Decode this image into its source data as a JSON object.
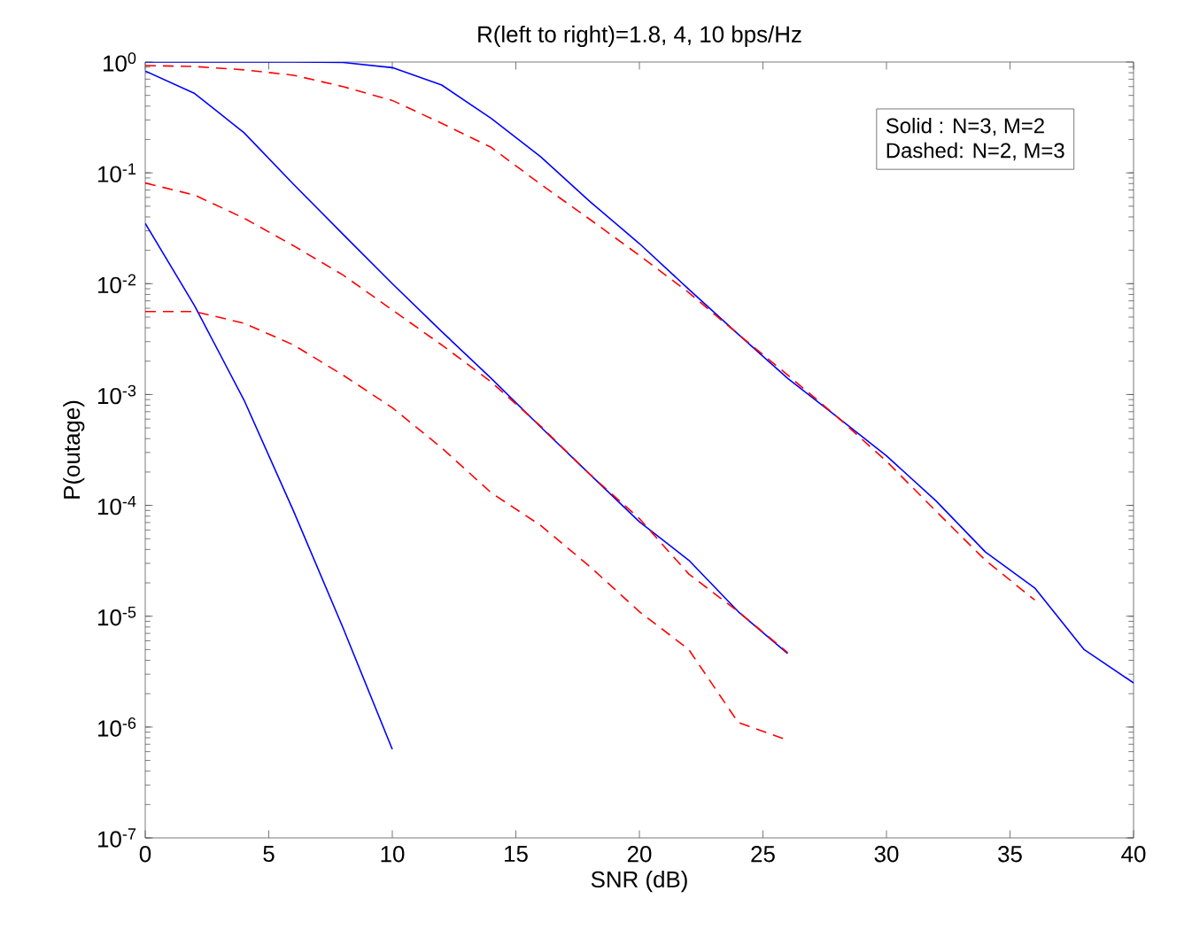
{
  "chart_data": {
    "type": "line",
    "title": "R(left to right)=1.8, 4, 10 bps/Hz",
    "xlabel": "SNR (dB)",
    "ylabel": "P(outage)",
    "log": "y",
    "xlim": [
      0,
      40
    ],
    "xticks": [
      0,
      5,
      10,
      15,
      20,
      25,
      30,
      35,
      40
    ],
    "ylim": [
      1e-07,
      1
    ],
    "yticks": [
      {
        "value": 1e-07,
        "label": "10$^{-7}$"
      },
      {
        "value": 1e-06,
        "label": "10$^{-6}$"
      },
      {
        "value": 1e-05,
        "label": "10$^{-5}$"
      },
      {
        "value": 0.0001,
        "label": "10$^{-4}$"
      },
      {
        "value": 0.001,
        "label": "10$^{-3}$"
      },
      {
        "value": 0.01,
        "label": "10$^{-2}$"
      },
      {
        "value": 0.1,
        "label": "10$^{-1}$"
      },
      {
        "value": 1,
        "label": "10$^{0}$"
      }
    ],
    "grid": false,
    "legend": false,
    "marker": "none",
    "annotations": [
      "Solid    : N=3, M=2",
      "Dashed: N=2, M=3"
    ],
    "series": [
      {
        "color": "#0000ff",
        "line_style": "solid",
        "x": [
          0,
          2,
          4,
          6,
          8,
          10
        ],
        "values": [
          0.035,
          0.0063,
          0.00089,
          8.9e-05,
          7.9e-06,
          6.3e-07
        ]
      },
      {
        "color": "#0000ff",
        "line_style": "solid",
        "x": [
          0,
          2,
          4,
          6,
          8,
          10,
          12,
          14,
          16,
          18,
          20,
          22,
          24,
          26
        ],
        "values": [
          0.83,
          0.52,
          0.23,
          0.079,
          0.028,
          0.01,
          0.0037,
          0.0014,
          0.00051,
          0.00019,
          7.1e-05,
          3.2e-05,
          1.1e-05,
          4.6e-06
        ]
      },
      {
        "color": "#0000ff",
        "line_style": "solid",
        "x": [
          0,
          2,
          4,
          6,
          8,
          10,
          12,
          14,
          16,
          18,
          20,
          22,
          24,
          26,
          28,
          30,
          32,
          34,
          36,
          38,
          40
        ],
        "values": [
          1,
          1,
          1,
          1,
          0.99,
          0.89,
          0.62,
          0.31,
          0.14,
          0.055,
          0.023,
          0.0089,
          0.0035,
          0.0014,
          0.00063,
          0.00028,
          0.00011,
          3.8e-05,
          1.8e-05,
          5e-06,
          2.5e-06
        ]
      },
      {
        "color": "#ff0000",
        "line_style": "dashed",
        "x": [
          0,
          2,
          4,
          6,
          8,
          10,
          12,
          14,
          16,
          18,
          20,
          22,
          24,
          26
        ],
        "values": [
          0.0056,
          0.0056,
          0.0044,
          0.0028,
          0.0015,
          0.00076,
          0.00033,
          0.00013,
          6.6e-05,
          2.8e-05,
          1.1e-05,
          5e-06,
          1.1e-06,
          7.6e-07
        ]
      },
      {
        "color": "#ff0000",
        "line_style": "dashed",
        "x": [
          0,
          2,
          4,
          6,
          8,
          10,
          12,
          14,
          16,
          18,
          20,
          22,
          24,
          26
        ],
        "values": [
          0.081,
          0.063,
          0.039,
          0.022,
          0.012,
          0.0058,
          0.0028,
          0.0013,
          0.00052,
          0.00019,
          7.6e-05,
          2.4e-05,
          1.1e-05,
          4.7e-06
        ]
      },
      {
        "color": "#ff0000",
        "line_style": "dashed",
        "x": [
          0,
          2,
          4,
          6,
          8,
          10,
          12,
          14,
          16,
          18,
          20,
          22,
          24,
          26,
          28,
          30,
          32,
          34,
          36
        ],
        "values": [
          0.93,
          0.91,
          0.85,
          0.76,
          0.6,
          0.45,
          0.28,
          0.17,
          0.079,
          0.038,
          0.018,
          0.0083,
          0.0035,
          0.0015,
          0.00063,
          0.00025,
          8.9e-05,
          3.2e-05,
          1.4e-05
        ]
      }
    ]
  }
}
